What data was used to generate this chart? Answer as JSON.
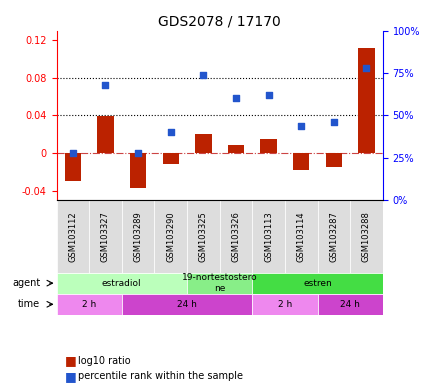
{
  "title": "GDS2078 / 17170",
  "samples": [
    "GSM103112",
    "GSM103327",
    "GSM103289",
    "GSM103290",
    "GSM103325",
    "GSM103326",
    "GSM103113",
    "GSM103114",
    "GSM103287",
    "GSM103288"
  ],
  "log10_ratio": [
    -0.03,
    0.039,
    -0.037,
    -0.012,
    0.02,
    0.008,
    0.015,
    -0.018,
    -0.015,
    0.112
  ],
  "percentile_rank": [
    0.28,
    0.68,
    0.28,
    0.4,
    0.74,
    0.6,
    0.62,
    0.44,
    0.46,
    0.78
  ],
  "bar_color": "#bb2200",
  "dot_color": "#2255cc",
  "ylim_left": [
    -0.05,
    0.13
  ],
  "ylim_right": [
    0,
    1.0
  ],
  "yticks_left": [
    -0.04,
    0.0,
    0.04,
    0.08,
    0.12
  ],
  "yticks_right": [
    0,
    0.25,
    0.5,
    0.75,
    1.0
  ],
  "ytick_labels_left": [
    "-0.04",
    "0",
    "0.04",
    "0.08",
    "0.12"
  ],
  "ytick_labels_right": [
    "0%",
    "25%",
    "50%",
    "75%",
    "100%"
  ],
  "dotted_lines": [
    0.08,
    0.04
  ],
  "agent_groups": [
    {
      "label": "estradiol",
      "start": 0,
      "end": 4,
      "color": "#bbffbb"
    },
    {
      "label": "19-nortestostero\nne",
      "start": 4,
      "end": 6,
      "color": "#88ee88"
    },
    {
      "label": "estren",
      "start": 6,
      "end": 10,
      "color": "#44dd44"
    }
  ],
  "time_groups": [
    {
      "label": "2 h",
      "start": 0,
      "end": 2,
      "color": "#ee88ee"
    },
    {
      "label": "24 h",
      "start": 2,
      "end": 6,
      "color": "#cc44cc"
    },
    {
      "label": "2 h",
      "start": 6,
      "end": 8,
      "color": "#ee88ee"
    },
    {
      "label": "24 h",
      "start": 8,
      "end": 10,
      "color": "#cc44cc"
    }
  ],
  "legend_bar_label": "log10 ratio",
  "legend_dot_label": "percentile rank within the sample",
  "background_color": "#ffffff"
}
